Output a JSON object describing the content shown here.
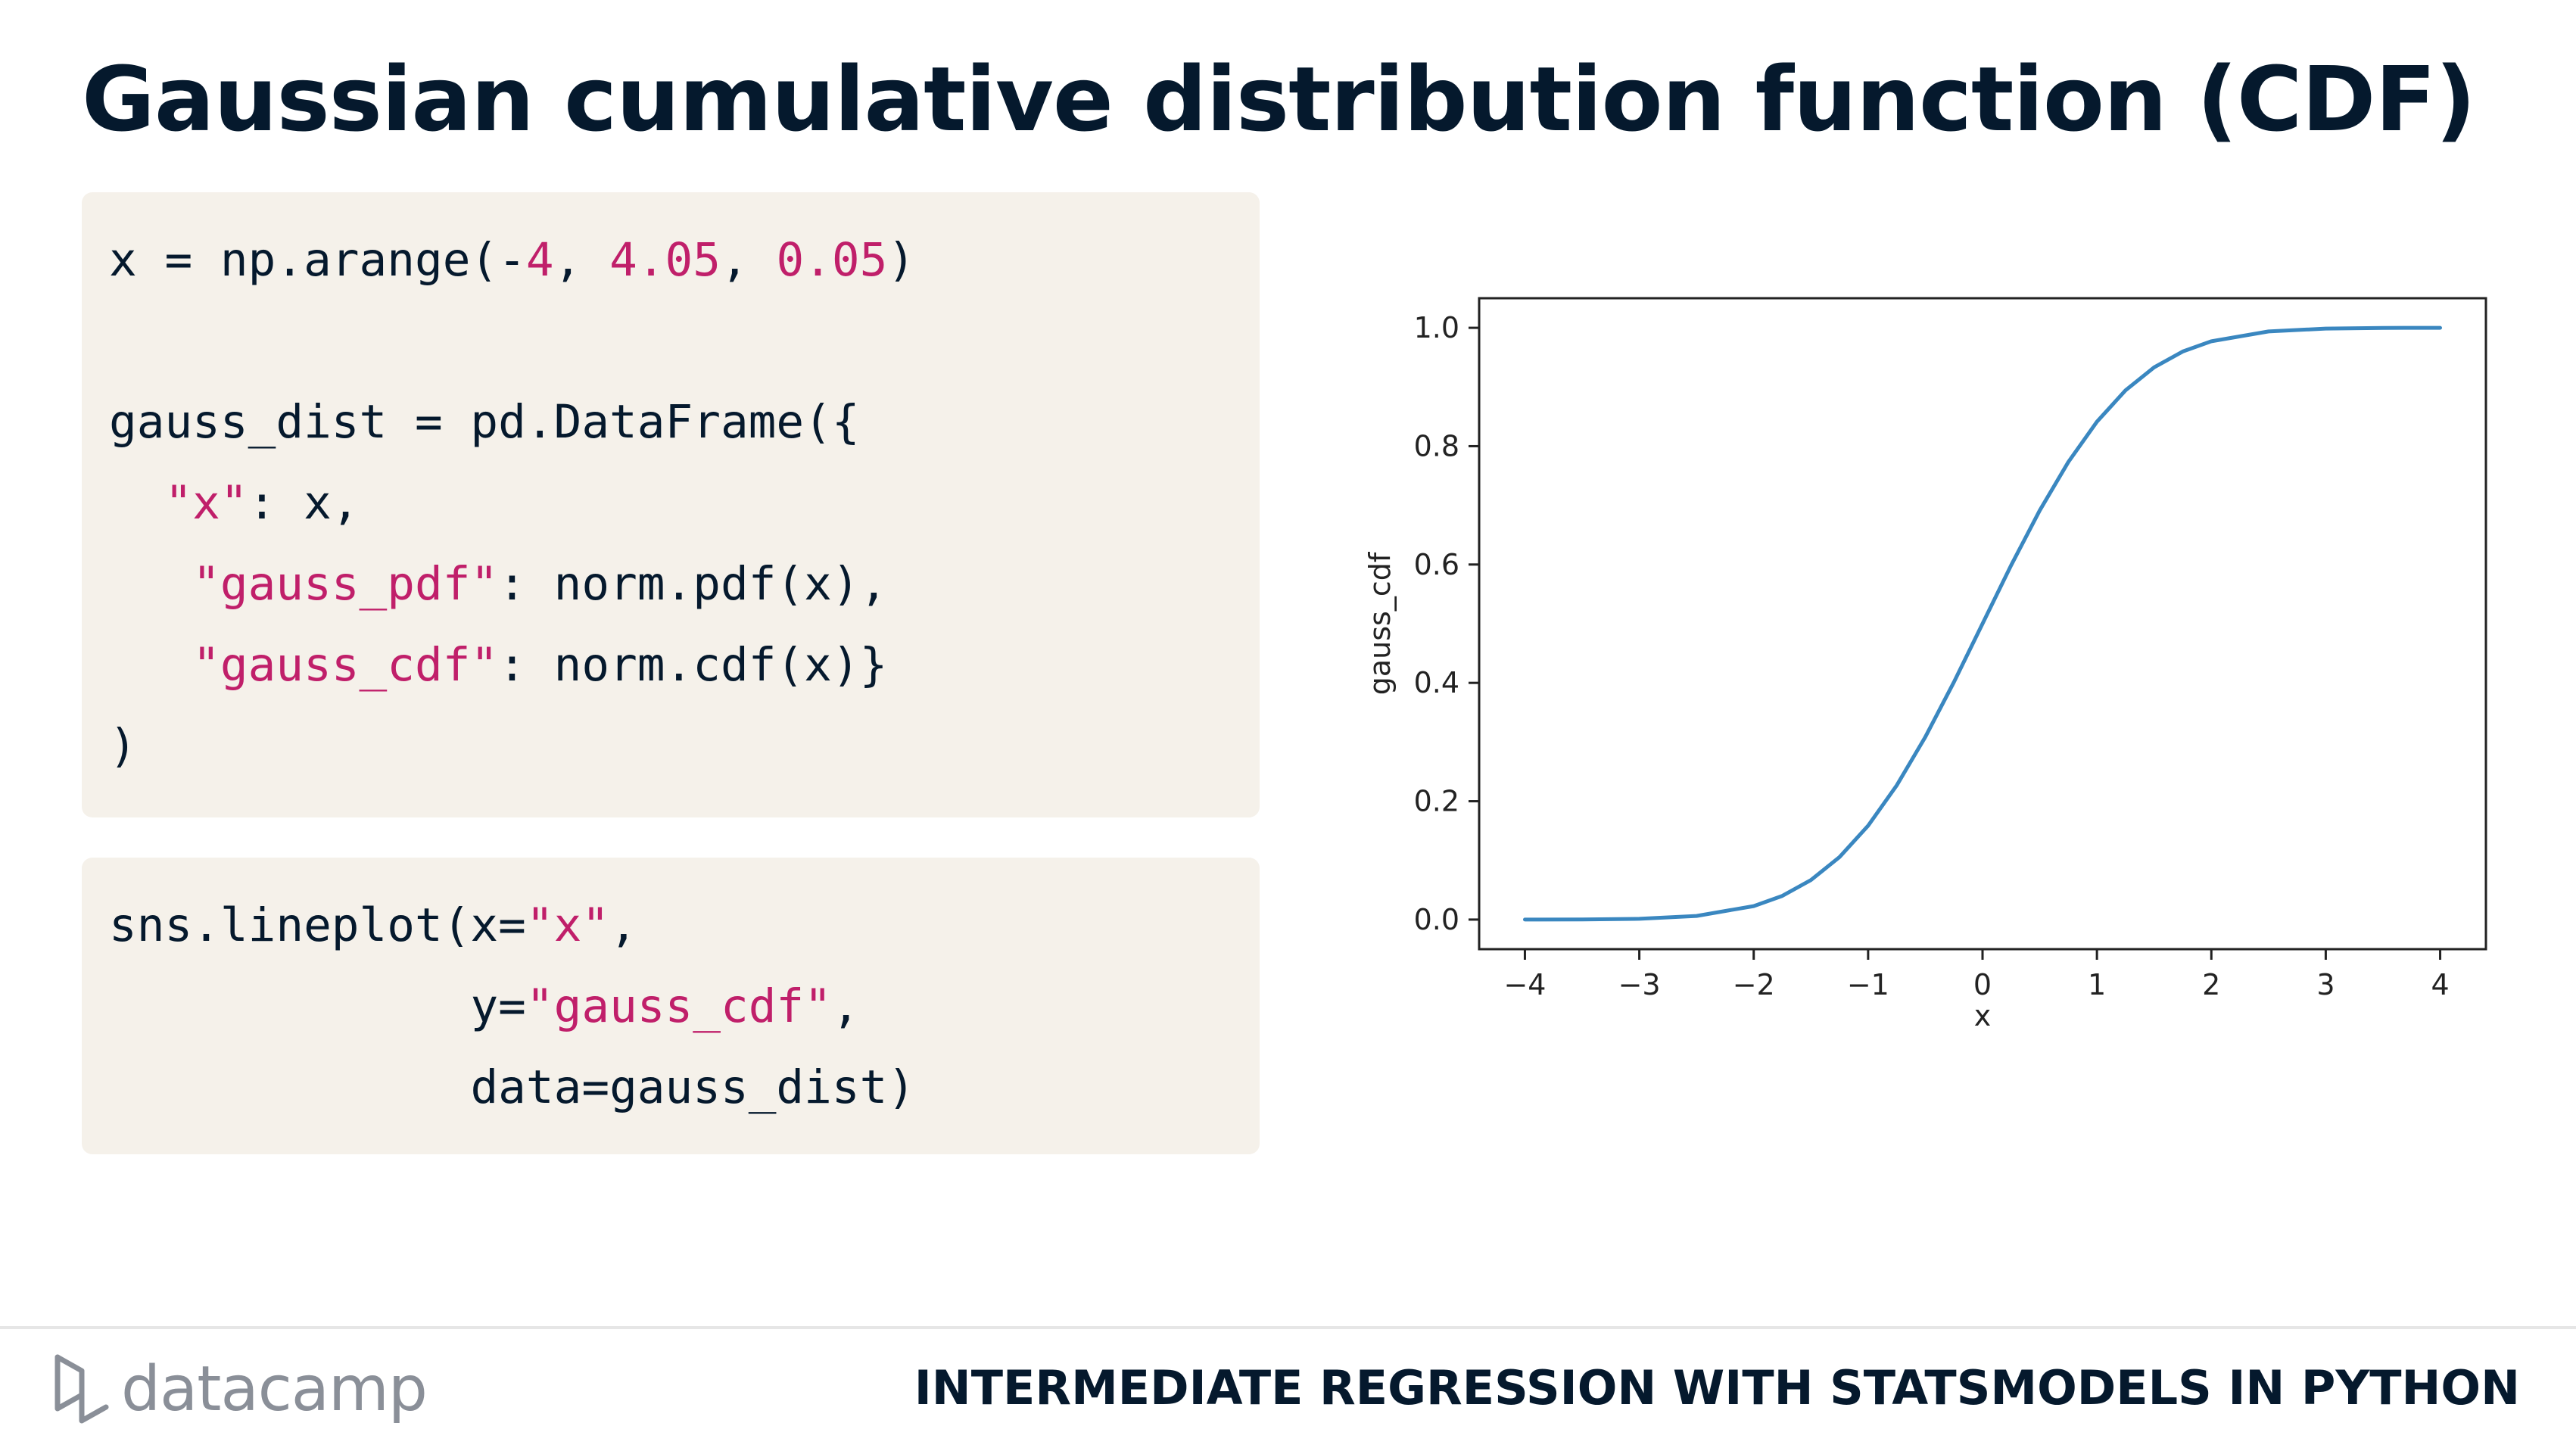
{
  "slide": {
    "title": "Gaussian cumulative distribution function (CDF)"
  },
  "code_block_1": {
    "l1": {
      "a": "x = np.arange(-",
      "n1": "4",
      "b": ", ",
      "n2": "4.05",
      "c": ", ",
      "n3": "0.05",
      "d": ")"
    },
    "l2": {
      "a": ""
    },
    "l3": {
      "a": "gauss_dist = pd.DataFrame({"
    },
    "l4": {
      "indent": "  ",
      "s": "\"x\"",
      "b": ": x,"
    },
    "l5": {
      "indent": "   ",
      "s": "\"gauss_pdf\"",
      "b": ": norm.pdf(x),"
    },
    "l6": {
      "indent": "   ",
      "s": "\"gauss_cdf\"",
      "b": ": norm.cdf(x)}"
    },
    "l7": {
      "a": ")"
    }
  },
  "code_block_2": {
    "l1": {
      "a": "sns.lineplot(x=",
      "s": "\"x\"",
      "b": ","
    },
    "l2": {
      "indent": "             ",
      "a": "y=",
      "s": "\"gauss_cdf\"",
      "b": ","
    },
    "l3": {
      "indent": "             ",
      "a": "data=gauss_dist)"
    }
  },
  "chart_data": {
    "type": "line",
    "title": "",
    "xlabel": "x",
    "ylabel": "gauss_cdf",
    "xlim": [
      -4.4,
      4.4
    ],
    "ylim": [
      -0.05,
      1.05
    ],
    "xticks": [
      -4,
      -3,
      -2,
      -1,
      0,
      1,
      2,
      3,
      4
    ],
    "xtick_labels": [
      "−4",
      "−3",
      "−2",
      "−1",
      "0",
      "1",
      "2",
      "3",
      "4"
    ],
    "yticks": [
      0.0,
      0.2,
      0.4,
      0.6,
      0.8,
      1.0
    ],
    "ytick_labels": [
      "0.0",
      "0.2",
      "0.4",
      "0.6",
      "0.8",
      "1.0"
    ],
    "grid": false,
    "line_color": "#3a87c0",
    "series": [
      {
        "x": [
          -4,
          -3.5,
          -3,
          -2.5,
          -2,
          -1.75,
          -1.5,
          -1.25,
          -1,
          -0.75,
          -0.5,
          -0.25,
          0,
          0.25,
          0.5,
          0.75,
          1,
          1.25,
          1.5,
          1.75,
          2,
          2.5,
          3,
          3.5,
          4
        ],
        "y": [
          3e-05,
          0.0002,
          0.0013,
          0.0062,
          0.0228,
          0.0401,
          0.0668,
          0.1056,
          0.1587,
          0.2266,
          0.3085,
          0.4013,
          0.5,
          0.5987,
          0.6915,
          0.7734,
          0.8413,
          0.8944,
          0.9332,
          0.9599,
          0.9772,
          0.9938,
          0.9987,
          0.9998,
          0.99997
        ]
      }
    ]
  },
  "footer": {
    "logo_text": "datacamp",
    "course_title": "INTERMEDIATE REGRESSION WITH STATSMODELS IN PYTHON"
  },
  "colors": {
    "title": "#05192d",
    "code_bg": "#f5f1ea",
    "code_literal": "#c01f6a",
    "logo": "#8a8f98"
  }
}
